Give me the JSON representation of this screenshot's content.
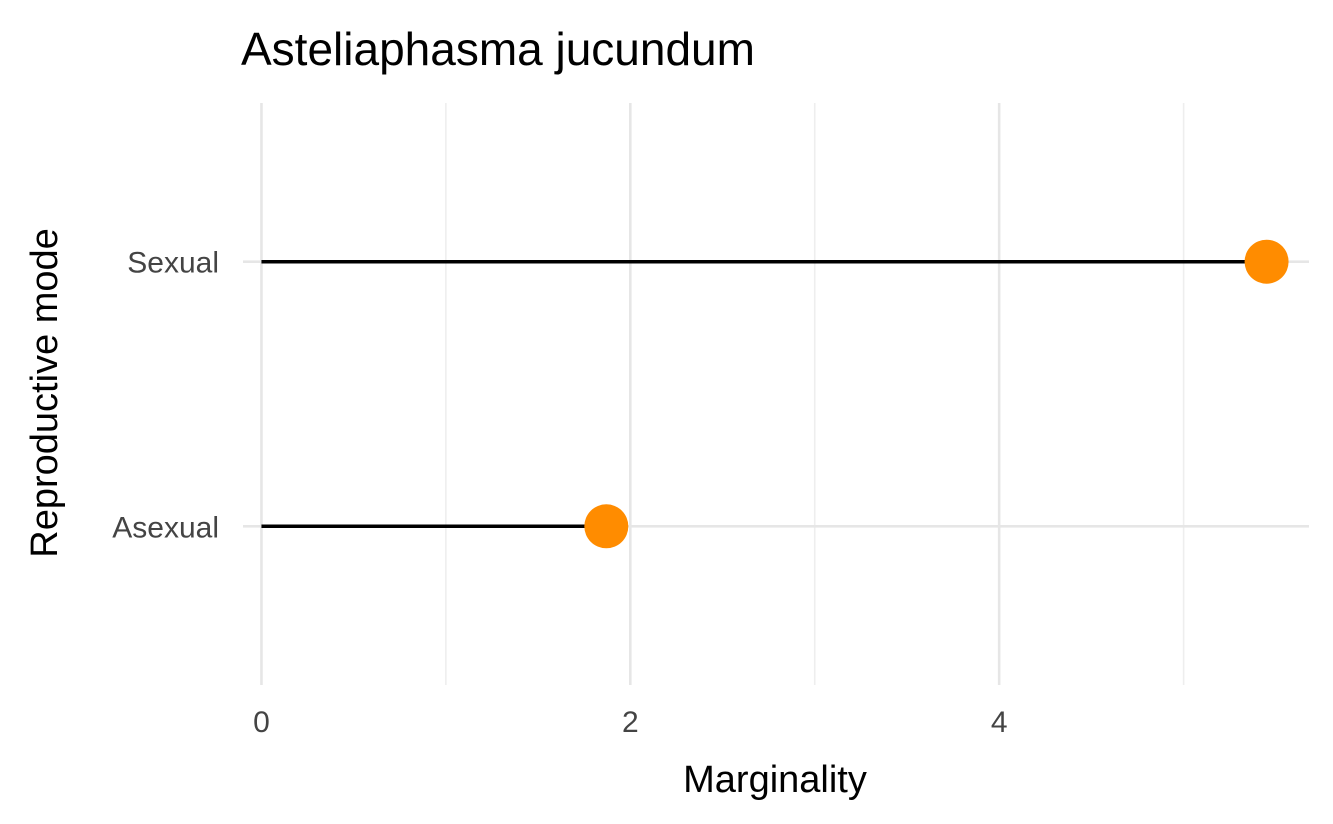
{
  "chart_data": {
    "type": "lollipop",
    "title": "Asteliaphasma jucundum",
    "xlabel": "Marginality",
    "ylabel": "Reproductive mode",
    "categories": [
      "Asexual",
      "Sexual"
    ],
    "values": [
      1.87,
      5.45
    ],
    "xlim": [
      -0.1,
      5.68
    ],
    "xticks": [
      0,
      2,
      4
    ],
    "xtick_labels": [
      "0",
      "2",
      "4"
    ],
    "x_minor_gridlines": [
      1,
      3,
      5
    ],
    "grid": true,
    "point_color": "#FF8C00",
    "segment_color": "#000000",
    "legend": "none"
  }
}
